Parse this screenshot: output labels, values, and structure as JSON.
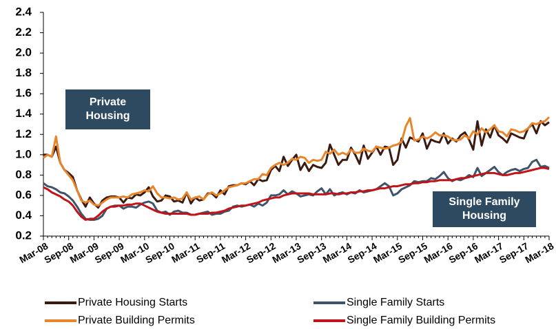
{
  "chart_data": {
    "type": "line",
    "categories": [
      "Mar-08",
      null,
      null,
      null,
      null,
      null,
      "Sep-08",
      null,
      null,
      null,
      null,
      null,
      "Mar-09",
      null,
      null,
      null,
      null,
      null,
      "Sep-09",
      null,
      null,
      null,
      null,
      null,
      "Mar-10",
      null,
      null,
      null,
      null,
      null,
      "Sep-10",
      null,
      null,
      null,
      null,
      null,
      "Mar-11",
      null,
      null,
      null,
      null,
      null,
      "Sep-11",
      null,
      null,
      null,
      null,
      null,
      "Mar-12",
      null,
      null,
      null,
      null,
      null,
      "Sep-12",
      null,
      null,
      null,
      null,
      null,
      "Mar-13",
      null,
      null,
      null,
      null,
      null,
      "Sep-13",
      null,
      null,
      null,
      null,
      null,
      "Mar-14",
      null,
      null,
      null,
      null,
      null,
      "Sep-14",
      null,
      null,
      null,
      null,
      null,
      "Mar-15",
      null,
      null,
      null,
      null,
      null,
      "Sep-15",
      null,
      null,
      null,
      null,
      null,
      "Mar-16",
      null,
      null,
      null,
      null,
      null,
      "Sep-16",
      null,
      null,
      null,
      null,
      null,
      "Mar-17",
      null,
      null,
      null,
      null,
      null,
      "Sep-17",
      null,
      null,
      null,
      null,
      null,
      "Mar-18"
    ],
    "series": [
      {
        "name": "Private Housing Starts",
        "color": "#3b1a10",
        "values": [
          1.0,
          1.0,
          0.98,
          1.08,
          0.92,
          0.85,
          0.82,
          0.78,
          0.65,
          0.56,
          0.49,
          0.58,
          0.52,
          0.48,
          0.55,
          0.58,
          0.59,
          0.59,
          0.58,
          0.53,
          0.58,
          0.57,
          0.61,
          0.6,
          0.63,
          0.68,
          0.59,
          0.54,
          0.55,
          0.6,
          0.59,
          0.54,
          0.55,
          0.53,
          0.63,
          0.52,
          0.58,
          0.55,
          0.56,
          0.62,
          0.62,
          0.58,
          0.65,
          0.61,
          0.69,
          0.7,
          0.7,
          0.72,
          0.71,
          0.74,
          0.7,
          0.76,
          0.74,
          0.75,
          0.85,
          0.89,
          0.84,
          0.98,
          0.89,
          0.95,
          1.0,
          0.85,
          0.92,
          0.84,
          0.9,
          0.88,
          0.87,
          0.92,
          1.1,
          1.0,
          0.9,
          0.95,
          0.95,
          1.07,
          1.0,
          0.91,
          1.09,
          0.96,
          1.02,
          1.08,
          1.0,
          1.08,
          1.07,
          0.9,
          0.95,
          1.16,
          1.07,
          1.17,
          1.15,
          1.13,
          1.21,
          1.06,
          1.15,
          1.13,
          1.12,
          1.21,
          1.11,
          1.16,
          1.13,
          1.19,
          1.22,
          1.15,
          1.05,
          1.33,
          1.09,
          1.25,
          1.17,
          1.29,
          1.19,
          1.16,
          1.12,
          1.21,
          1.19,
          1.17,
          1.16,
          1.26,
          1.3,
          1.21,
          1.33,
          1.29,
          1.32
        ]
      },
      {
        "name": "Private Building Permits",
        "color": "#e8852a",
        "values": [
          0.97,
          1.0,
          0.98,
          1.18,
          0.92,
          0.85,
          0.8,
          0.75,
          0.65,
          0.55,
          0.53,
          0.55,
          0.51,
          0.5,
          0.53,
          0.56,
          0.58,
          0.58,
          0.58,
          0.59,
          0.58,
          0.61,
          0.62,
          0.63,
          0.65,
          0.64,
          0.69,
          0.62,
          0.58,
          0.58,
          0.57,
          0.58,
          0.56,
          0.57,
          0.63,
          0.56,
          0.58,
          0.59,
          0.56,
          0.61,
          0.63,
          0.6,
          0.62,
          0.65,
          0.68,
          0.69,
          0.7,
          0.72,
          0.72,
          0.74,
          0.76,
          0.76,
          0.81,
          0.8,
          0.87,
          0.9,
          0.92,
          0.9,
          0.92,
          0.96,
          0.95,
          0.98,
          0.97,
          0.92,
          0.95,
          0.94,
          0.95,
          1.03,
          1.01,
          1.05,
          1.0,
          1.02,
          1.0,
          1.05,
          1.02,
          1.02,
          1.06,
          1.04,
          1.03,
          1.08,
          1.07,
          1.06,
          1.07,
          1.09,
          1.1,
          1.13,
          1.28,
          1.36,
          1.14,
          1.15,
          1.18,
          1.16,
          1.18,
          1.22,
          1.19,
          1.19,
          1.18,
          1.15,
          1.14,
          1.15,
          1.19,
          1.16,
          1.23,
          1.2,
          1.26,
          1.22,
          1.25,
          1.29,
          1.23,
          1.22,
          1.18,
          1.25,
          1.24,
          1.22,
          1.23,
          1.26,
          1.31,
          1.3,
          1.32,
          1.33,
          1.37
        ]
      },
      {
        "name": "Single Family Starts",
        "color": "#3e5468",
        "values": [
          0.72,
          0.69,
          0.68,
          0.66,
          0.63,
          0.62,
          0.59,
          0.55,
          0.49,
          0.42,
          0.37,
          0.36,
          0.36,
          0.37,
          0.4,
          0.47,
          0.49,
          0.5,
          0.5,
          0.47,
          0.49,
          0.49,
          0.48,
          0.51,
          0.53,
          0.54,
          0.52,
          0.45,
          0.43,
          0.44,
          0.41,
          0.44,
          0.45,
          0.43,
          0.43,
          0.41,
          0.41,
          0.42,
          0.43,
          0.44,
          0.41,
          0.42,
          0.42,
          0.44,
          0.45,
          0.49,
          0.5,
          0.49,
          0.5,
          0.51,
          0.49,
          0.52,
          0.5,
          0.53,
          0.6,
          0.6,
          0.61,
          0.65,
          0.61,
          0.64,
          0.62,
          0.59,
          0.6,
          0.61,
          0.6,
          0.64,
          0.67,
          0.61,
          0.66,
          0.6,
          0.62,
          0.63,
          0.61,
          0.63,
          0.62,
          0.65,
          0.63,
          0.64,
          0.65,
          0.66,
          0.69,
          0.72,
          0.69,
          0.6,
          0.62,
          0.66,
          0.68,
          0.7,
          0.74,
          0.73,
          0.74,
          0.74,
          0.77,
          0.76,
          0.79,
          0.83,
          0.77,
          0.74,
          0.76,
          0.75,
          0.77,
          0.8,
          0.78,
          0.87,
          0.79,
          0.82,
          0.85,
          0.88,
          0.83,
          0.8,
          0.83,
          0.85,
          0.86,
          0.84,
          0.86,
          0.87,
          0.93,
          0.95,
          0.88,
          0.89,
          0.87
        ]
      },
      {
        "name": "Single Family Building Permits",
        "color": "#c0141a",
        "values": [
          0.68,
          0.66,
          0.63,
          0.61,
          0.59,
          0.56,
          0.54,
          0.5,
          0.44,
          0.39,
          0.36,
          0.37,
          0.37,
          0.4,
          0.44,
          0.47,
          0.49,
          0.49,
          0.5,
          0.5,
          0.51,
          0.51,
          0.52,
          0.52,
          0.5,
          0.48,
          0.46,
          0.44,
          0.43,
          0.42,
          0.42,
          0.42,
          0.42,
          0.42,
          0.42,
          0.41,
          0.41,
          0.42,
          0.42,
          0.42,
          0.43,
          0.43,
          0.44,
          0.45,
          0.47,
          0.48,
          0.49,
          0.5,
          0.5,
          0.51,
          0.52,
          0.53,
          0.55,
          0.56,
          0.57,
          0.58,
          0.58,
          0.6,
          0.61,
          0.62,
          0.62,
          0.62,
          0.62,
          0.62,
          0.61,
          0.61,
          0.61,
          0.61,
          0.62,
          0.62,
          0.61,
          0.62,
          0.62,
          0.63,
          0.63,
          0.64,
          0.64,
          0.65,
          0.65,
          0.66,
          0.67,
          0.67,
          0.68,
          0.69,
          0.69,
          0.7,
          0.71,
          0.71,
          0.72,
          0.72,
          0.73,
          0.73,
          0.74,
          0.74,
          0.75,
          0.75,
          0.75,
          0.75,
          0.76,
          0.77,
          0.77,
          0.78,
          0.79,
          0.8,
          0.81,
          0.82,
          0.82,
          0.82,
          0.81,
          0.8,
          0.8,
          0.81,
          0.82,
          0.82,
          0.83,
          0.84,
          0.85,
          0.86,
          0.87,
          0.87,
          0.86
        ]
      }
    ],
    "ylim": [
      0.2,
      2.4
    ],
    "yticks": [
      0.2,
      0.4,
      0.6,
      0.8,
      {
        "value": 1,
        "label": "1.0"
      },
      1.2,
      1.4,
      1.6,
      1.8,
      {
        "value": 2,
        "label": "2.0"
      },
      2.2,
      2.4
    ],
    "annotations": [
      {
        "lines": [
          "Private",
          "Housing"
        ]
      },
      {
        "lines": [
          "Single Family",
          "Housing"
        ]
      }
    ]
  }
}
